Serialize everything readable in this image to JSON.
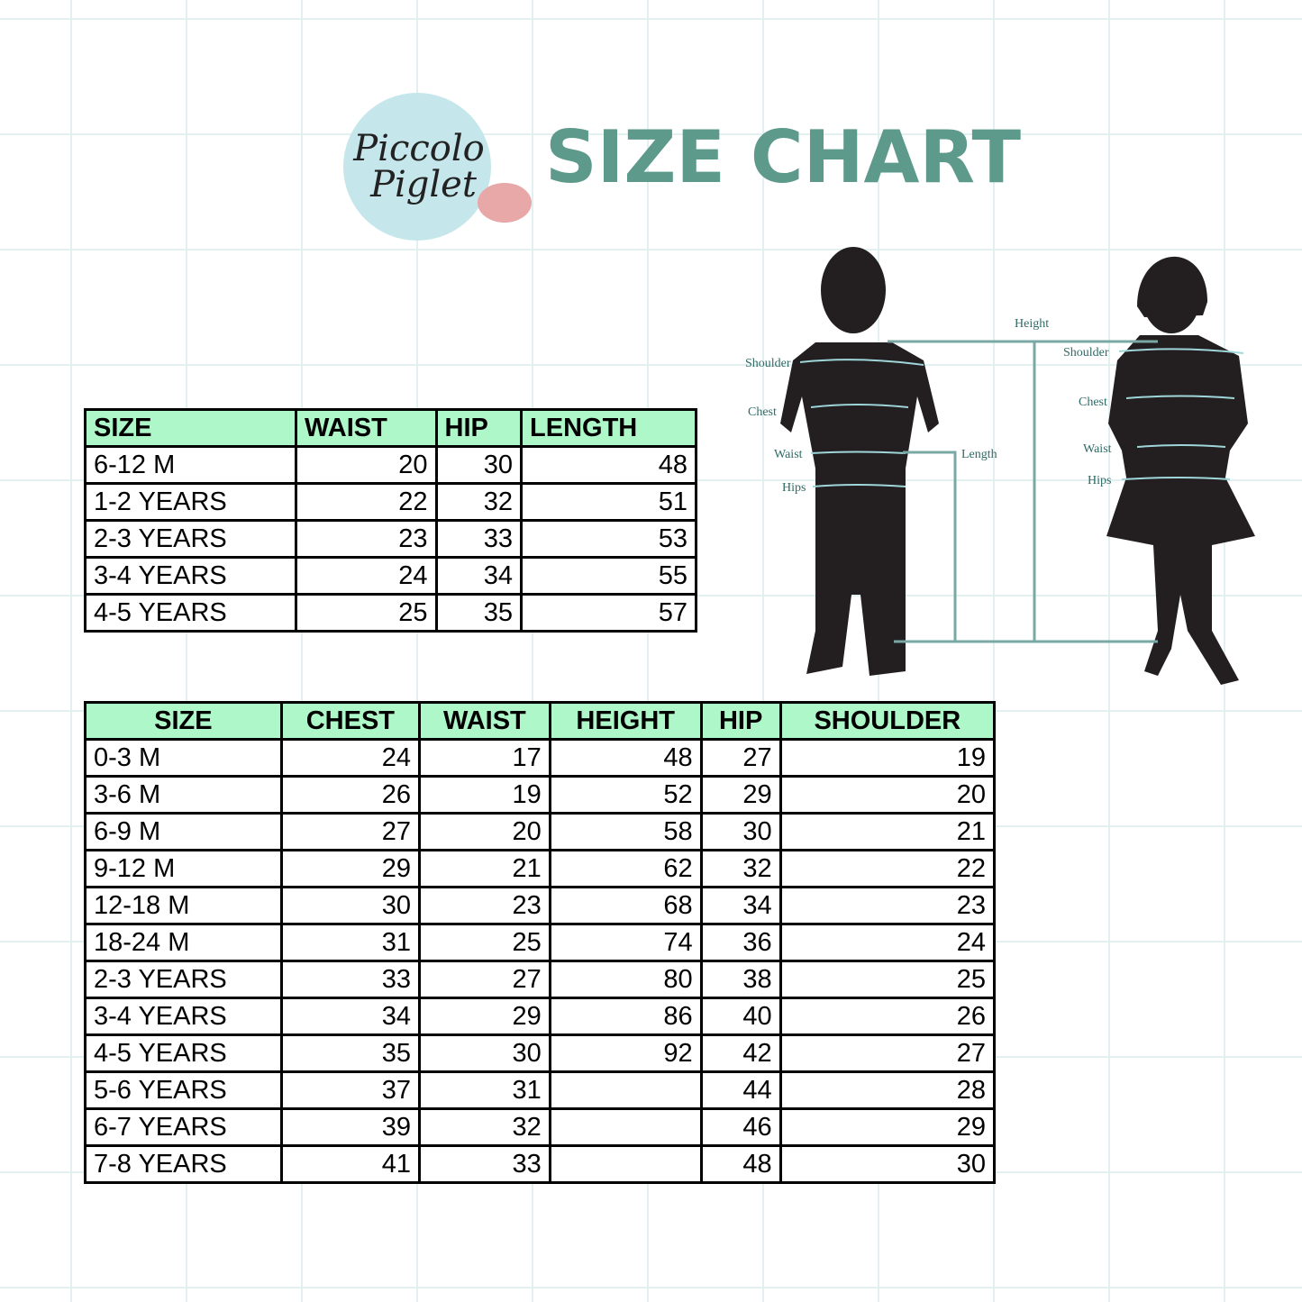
{
  "logo": {
    "lines": [
      "Piccolo",
      "Piglet"
    ]
  },
  "title": "SIZE CHART",
  "diagram": {
    "height": "Height",
    "length": "Length",
    "boy": [
      "Shoulder",
      "Chest",
      "Waist",
      "Hips"
    ],
    "girl": [
      "Shoulder",
      "Chest",
      "Waist",
      "Hips"
    ]
  },
  "table1": {
    "header": [
      "SIZE",
      "WAIST",
      "HIP",
      "LENGTH"
    ],
    "rows": [
      [
        "6-12 M",
        20,
        30,
        48
      ],
      [
        "1-2 YEARS",
        22,
        32,
        51
      ],
      [
        "2-3 YEARS",
        23,
        33,
        53
      ],
      [
        "3-4 YEARS",
        24,
        34,
        55
      ],
      [
        "4-5 YEARS",
        25,
        35,
        57
      ]
    ]
  },
  "table2": {
    "header": [
      "SIZE",
      "CHEST",
      "WAIST",
      "HEIGHT",
      "HIP",
      "SHOULDER"
    ],
    "rows": [
      [
        "0-3 M",
        24,
        17,
        48,
        27,
        19
      ],
      [
        "3-6 M",
        26,
        19,
        52,
        29,
        20
      ],
      [
        "6-9 M",
        27,
        20,
        58,
        30,
        21
      ],
      [
        "9-12 M",
        29,
        21,
        62,
        32,
        22
      ],
      [
        "12-18 M",
        30,
        23,
        68,
        34,
        23
      ],
      [
        "18-24 M",
        31,
        25,
        74,
        36,
        24
      ],
      [
        "2-3 YEARS",
        33,
        27,
        80,
        38,
        25
      ],
      [
        "3-4 YEARS",
        34,
        29,
        86,
        40,
        26
      ],
      [
        "4-5 YEARS",
        35,
        30,
        92,
        42,
        27
      ],
      [
        "5-6 YEARS",
        37,
        31,
        null,
        44,
        28
      ],
      [
        "6-7 YEARS",
        39,
        32,
        null,
        46,
        29
      ],
      [
        "7-8 YEARS",
        41,
        33,
        null,
        48,
        30
      ]
    ]
  }
}
